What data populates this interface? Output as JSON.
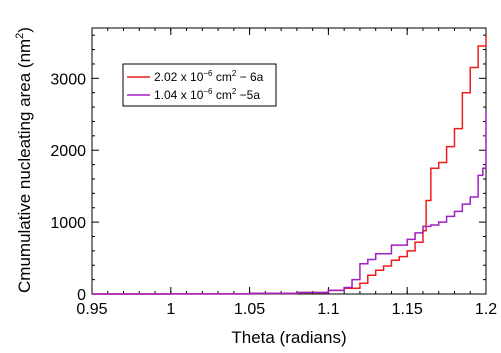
{
  "chart_data": {
    "type": "line",
    "title": "",
    "xlabel": "Theta (radians)",
    "ylabel_main": "Cmumulative nucleating area (nm",
    "ylabel_sup": "2",
    "ylabel_close": ")",
    "xlim": [
      0.95,
      1.2
    ],
    "ylim": [
      0,
      3700
    ],
    "xticks": [
      0.95,
      1,
      1.05,
      1.1,
      1.15,
      1.2
    ],
    "xtick_labels": [
      "0.95",
      "1",
      "1.05",
      "1.1",
      "1.15",
      "1.2"
    ],
    "yticks": [
      0,
      1000,
      2000,
      3000
    ],
    "ytick_labels": [
      "0",
      "1000",
      "2000",
      "3000"
    ],
    "grid": false,
    "legend_position": "top-left",
    "series": [
      {
        "legend_parts": [
          "2.02 x 10",
          "−6",
          " cm",
          "2",
          " − 6a"
        ],
        "color": "#ee1c1c",
        "x": [
          0.95,
          1.0,
          1.05,
          1.08,
          1.1,
          1.11,
          1.12,
          1.125,
          1.13,
          1.135,
          1.14,
          1.145,
          1.15,
          1.155,
          1.16,
          1.162,
          1.165,
          1.17,
          1.175,
          1.18,
          1.185,
          1.19,
          1.195,
          1.2
        ],
        "y": [
          0,
          2,
          8,
          20,
          50,
          80,
          150,
          260,
          330,
          390,
          470,
          520,
          600,
          720,
          880,
          1300,
          1750,
          1830,
          2050,
          2300,
          2800,
          3150,
          3450,
          3600
        ]
      },
      {
        "legend_parts": [
          "1.04 x 10",
          "−6",
          " cm",
          "2",
          " −5a"
        ],
        "color": "#a020c0",
        "x": [
          0.95,
          1.0,
          1.05,
          1.08,
          1.1,
          1.11,
          1.115,
          1.12,
          1.125,
          1.13,
          1.14,
          1.15,
          1.155,
          1.16,
          1.165,
          1.17,
          1.175,
          1.18,
          1.185,
          1.19,
          1.195,
          1.198,
          1.2
        ],
        "y": [
          0,
          2,
          8,
          20,
          50,
          90,
          200,
          420,
          480,
          560,
          680,
          760,
          850,
          940,
          960,
          1000,
          1080,
          1150,
          1250,
          1350,
          1650,
          1750,
          2550
        ]
      }
    ]
  }
}
